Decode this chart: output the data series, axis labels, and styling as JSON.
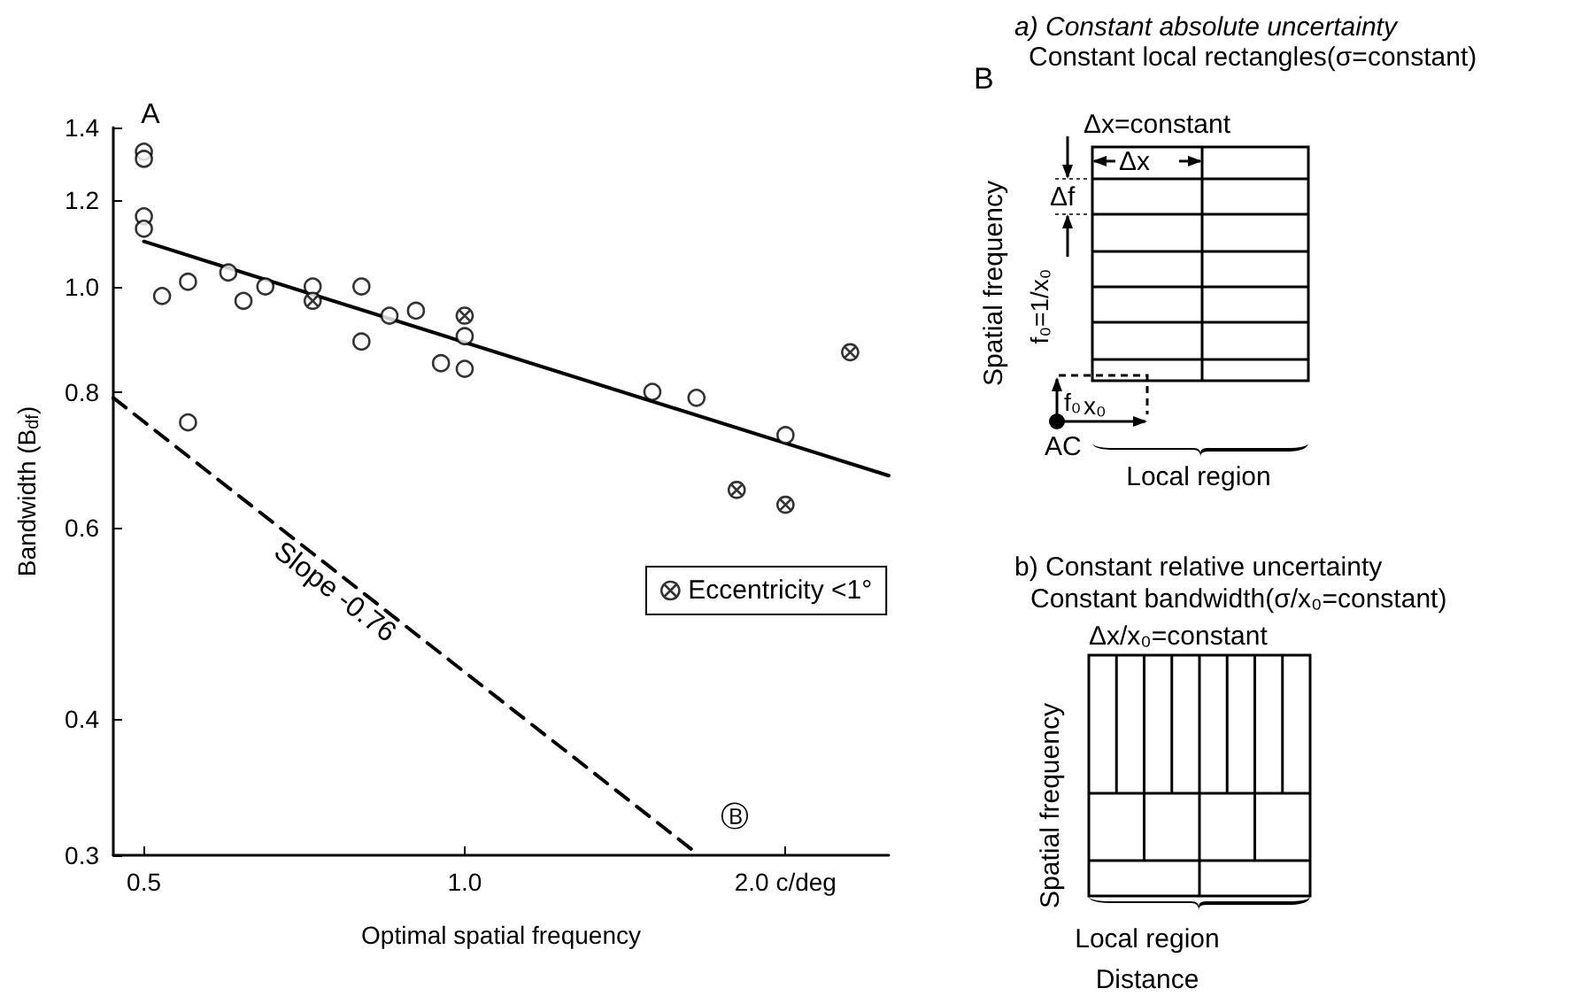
{
  "chart_data": [
    {
      "type": "scatter",
      "xlabel": "Optimal spatial frequency",
      "ylabel": "Bandwidth (B$_{df}$)",
      "log": "xy",
      "xlim": [
        0.468,
        2.5
      ],
      "ylim": [
        0.3,
        1.4
      ],
      "xticks": [
        0.5,
        {
          "value": 1,
          "label": "1.0"
        },
        {
          "value": 2,
          "label": "2.0 c/deg"
        }
      ],
      "yticks": [
        0.3,
        0.4,
        0.6,
        0.8,
        {
          "value": 1,
          "label": "1.0"
        },
        1.2,
        1.4
      ],
      "grid": false,
      "legend": "right",
      "marker": "circle",
      "series": [
        {
          "color": "#000000",
          "x": [
            0.5,
            0.5,
            0.5,
            0.5,
            0.52,
            0.55,
            0.6,
            0.62,
            0.65,
            0.72,
            0.8,
            0.8,
            0.85,
            0.9,
            0.95,
            1.0,
            1.0,
            0.55,
            1.5,
            1.65,
            2.0
          ],
          "values": [
            1.33,
            1.31,
            1.16,
            1.13,
            0.98,
            1.01,
            1.03,
            0.97,
            1.0,
            1.0,
            1.0,
            0.89,
            0.94,
            0.95,
            0.85,
            0.84,
            0.9,
            0.75,
            0.8,
            0.79,
            0.73
          ]
        },
        {
          "name": "Eccentricity <1°",
          "color": "#000000",
          "marker": "cross",
          "x": [
            0.72,
            1.0,
            2.3,
            1.8,
            2.0
          ],
          "values": [
            0.97,
            0.94,
            0.87,
            0.65,
            0.63
          ]
        },
        {
          "type": "line",
          "color": "#000000",
          "marker": "none",
          "line_style": "solid",
          "x": [
            0.5,
            2.5
          ],
          "values": [
            1.1,
            0.67
          ]
        },
        {
          "type": "line",
          "color": "#000000",
          "marker": "none",
          "line_style": "dashed",
          "x": [
            0.468,
            1.66
          ],
          "values": [
            0.79,
            0.3
          ]
        }
      ],
      "annotations": [
        "A",
        {
          "text": "Slope -0.76",
          "x": 0.79,
          "y": 0.543
        },
        "Ⓑ"
      ]
    },
    {
      "type": "other",
      "annotations": [
        "B",
        "a) Constant absolute uncertainty",
        "Constant local rectangles(σ=constant)",
        "Δx=constant",
        "Δx",
        "Δf",
        "Spatial frequency",
        "f₀=1/x₀",
        "f₀",
        "x₀",
        "AC",
        "Local region",
        "b) Constant relative uncertainty",
        "Constant bandwidth(σ/x₀=constant)",
        "Δx/x₀=constant",
        "Spatial frequency",
        "Local region",
        "Distance"
      ]
    }
  ]
}
